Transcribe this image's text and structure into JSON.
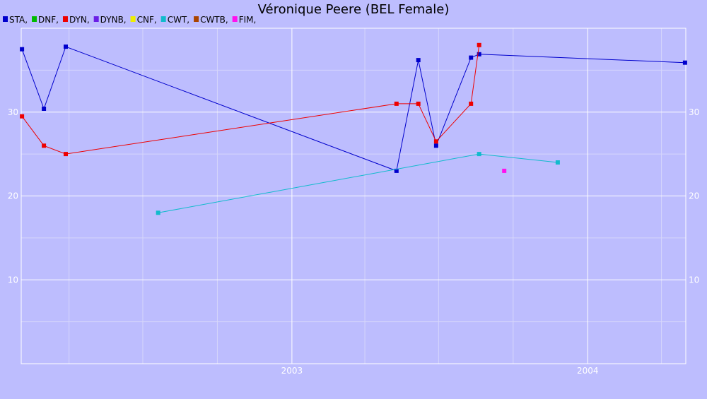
{
  "chart_data": {
    "type": "line",
    "title": "Véronique Peere (BEL Female)",
    "legend": [
      {
        "label": "STA,",
        "color": "#0000cc"
      },
      {
        "label": "DNF,",
        "color": "#00bb00"
      },
      {
        "label": "DYN,",
        "color": "#ee0000"
      },
      {
        "label": "DYNB,",
        "color": "#6a1ee6"
      },
      {
        "label": "CNF,",
        "color": "#eeee00"
      },
      {
        "label": "CWT,",
        "color": "#11bbcc"
      },
      {
        "label": "CWTB,",
        "color": "#aa4400"
      },
      {
        "label": "FIM,",
        "color": "#ff11ee"
      }
    ],
    "legend_position": "top-left",
    "x_axis": {
      "type": "date",
      "range": [
        "2002-02-01",
        "2004-05-01"
      ],
      "tick_labels": [
        "2003",
        "2004"
      ],
      "major_ticks": [
        "2003-01-01",
        "2004-01-01"
      ],
      "minor_ticks": [
        "2002-04-01",
        "2002-07-01",
        "2002-10-01",
        "2003-04-01",
        "2003-07-01",
        "2003-10-01",
        "2004-04-01"
      ]
    },
    "y_axis": {
      "range": [
        0,
        40
      ],
      "major_ticks": [
        10,
        20,
        30
      ],
      "minor_ticks": [
        5,
        15,
        25,
        35
      ],
      "tick_labels_left": [
        "10",
        "20",
        "30"
      ],
      "tick_labels_right": [
        "10",
        "20",
        "30"
      ]
    },
    "grid": true,
    "series": [
      {
        "name": "STA",
        "color": "#0000cc",
        "points": [
          {
            "x": "2002-02-02",
            "y": 37.5
          },
          {
            "x": "2002-03-01",
            "y": 30.4
          },
          {
            "x": "2002-03-28",
            "y": 37.8
          },
          {
            "x": "2003-05-10",
            "y": 23.0
          },
          {
            "x": "2003-06-06",
            "y": 36.2
          },
          {
            "x": "2003-06-28",
            "y": 26.0
          },
          {
            "x": "2003-08-10",
            "y": 36.5
          },
          {
            "x": "2003-08-20",
            "y": 36.9
          },
          {
            "x": "2004-04-30",
            "y": 35.9
          }
        ]
      },
      {
        "name": "DYN",
        "color": "#ee0000",
        "points": [
          {
            "x": "2002-02-02",
            "y": 29.5
          },
          {
            "x": "2002-03-01",
            "y": 26.0
          },
          {
            "x": "2002-03-28",
            "y": 25.0
          },
          {
            "x": "2003-05-10",
            "y": 31.0
          },
          {
            "x": "2003-06-06",
            "y": 31.0
          },
          {
            "x": "2003-06-28",
            "y": 26.5
          },
          {
            "x": "2003-08-10",
            "y": 31.0
          },
          {
            "x": "2003-08-20",
            "y": 38.0
          }
        ]
      },
      {
        "name": "CWT",
        "color": "#11bbcc",
        "points": [
          {
            "x": "2002-07-20",
            "y": 18.0
          },
          {
            "x": "2003-08-20",
            "y": 25.0
          },
          {
            "x": "2003-11-25",
            "y": 24.0
          }
        ]
      },
      {
        "name": "FIM",
        "color": "#ff11ee",
        "points": [
          {
            "x": "2003-09-20",
            "y": 23.0
          }
        ]
      }
    ]
  }
}
